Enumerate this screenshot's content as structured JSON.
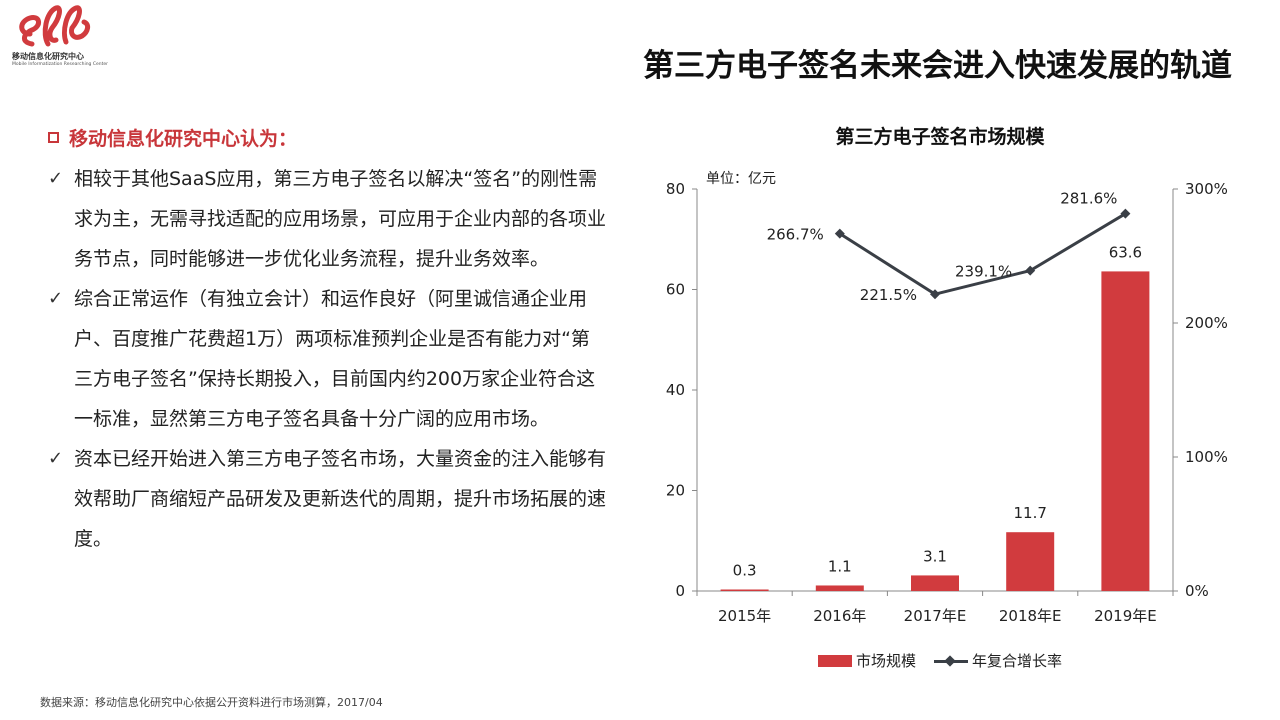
{
  "header": {
    "logo_cn": "移动信息化研究中心",
    "logo_en": "Mobile Informatization Researching Center",
    "title": "第三方电子签名未来会进入快速发展的轨道"
  },
  "left": {
    "intro": "移动信息化研究中心认为：",
    "check_icon": "✓",
    "points": [
      "相较于其他SaaS应用，第三方电子签名以解决“签名”的刚性需求为主，无需寻找适配的应用场景，可应用于企业内部的各项业务节点，同时能够进一步优化业务流程，提升业务效率。",
      "综合正常运作（有独立会计）和运作良好（阿里诚信通企业用户、百度推广花费超1万）两项标准预判企业是否有能力对“第三方电子签名”保持长期投入，目前国内约200万家企业符合这一标准，显然第三方电子签名具备十分广阔的应用市场。",
      "资本已经开始进入第三方电子签名市场，大量资金的注入能够有效帮助厂商缩短产品研发及更新迭代的周期，提升市场拓展的速度。"
    ]
  },
  "source": "数据来源：移动信息化研究中心依据公开资料进行市场测算，2017/04",
  "colors": {
    "bar": "#d13b3e",
    "line": "#3a3f46",
    "accent": "#c8363a"
  },
  "chart_data": {
    "type": "bar",
    "title": "第三方电子签名市场规模",
    "unit_label": "单位：亿元",
    "categories": [
      "2015年",
      "2016年",
      "2017年E",
      "2018年E",
      "2019年E"
    ],
    "ylim": [
      0,
      80
    ],
    "yticks": [
      0,
      20,
      40,
      60,
      80
    ],
    "y2lim": [
      0,
      300
    ],
    "y2ticks": [
      "0%",
      "100%",
      "200%",
      "300%"
    ],
    "series": [
      {
        "name": "市场规模",
        "type": "bar",
        "axis": "left",
        "values": [
          0.3,
          1.1,
          3.1,
          11.7,
          63.6
        ],
        "labels": [
          "0.3",
          "1.1",
          "3.1",
          "11.7",
          "63.6"
        ]
      },
      {
        "name": "年复合增长率",
        "type": "line",
        "axis": "right",
        "values": [
          null,
          266.7,
          221.5,
          239.1,
          281.6
        ],
        "labels": [
          "",
          "266.7%",
          "221.5%",
          "239.1%",
          "281.6%"
        ]
      }
    ],
    "grid": false,
    "legend": "bottom"
  }
}
